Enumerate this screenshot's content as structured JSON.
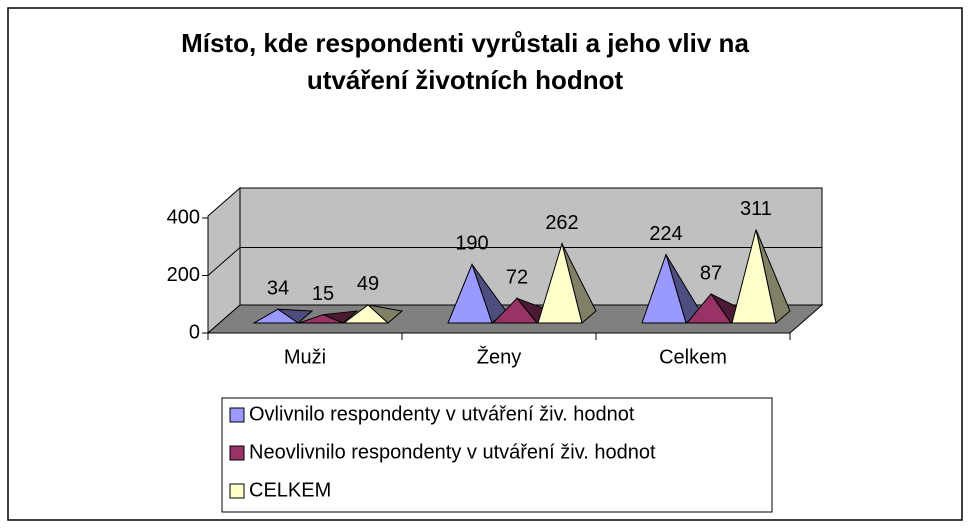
{
  "chart_data": {
    "type": "pyramid3d",
    "title": "Místo, kde respondenti vyrůstali a jeho vliv na",
    "subtitle": "utváření životních hodnot",
    "categories": [
      "Muži",
      "Ženy",
      "Celkem"
    ],
    "series": [
      {
        "name": "Ovlivnilo respondenty v utváření živ. hodnot",
        "color": "#9999FF",
        "values": [
          34,
          190,
          224
        ]
      },
      {
        "name": "Neovlivnilo respondenty v utváření živ. hodnot",
        "color": "#993366",
        "values": [
          15,
          72,
          87
        ]
      },
      {
        "name": "CELKEM",
        "color": "#FFFFCC",
        "values": [
          49,
          262,
          311
        ]
      }
    ],
    "ylim": [
      0,
      400
    ],
    "yticks": [
      0,
      200,
      400
    ],
    "grid": true,
    "legend": "bottom"
  }
}
